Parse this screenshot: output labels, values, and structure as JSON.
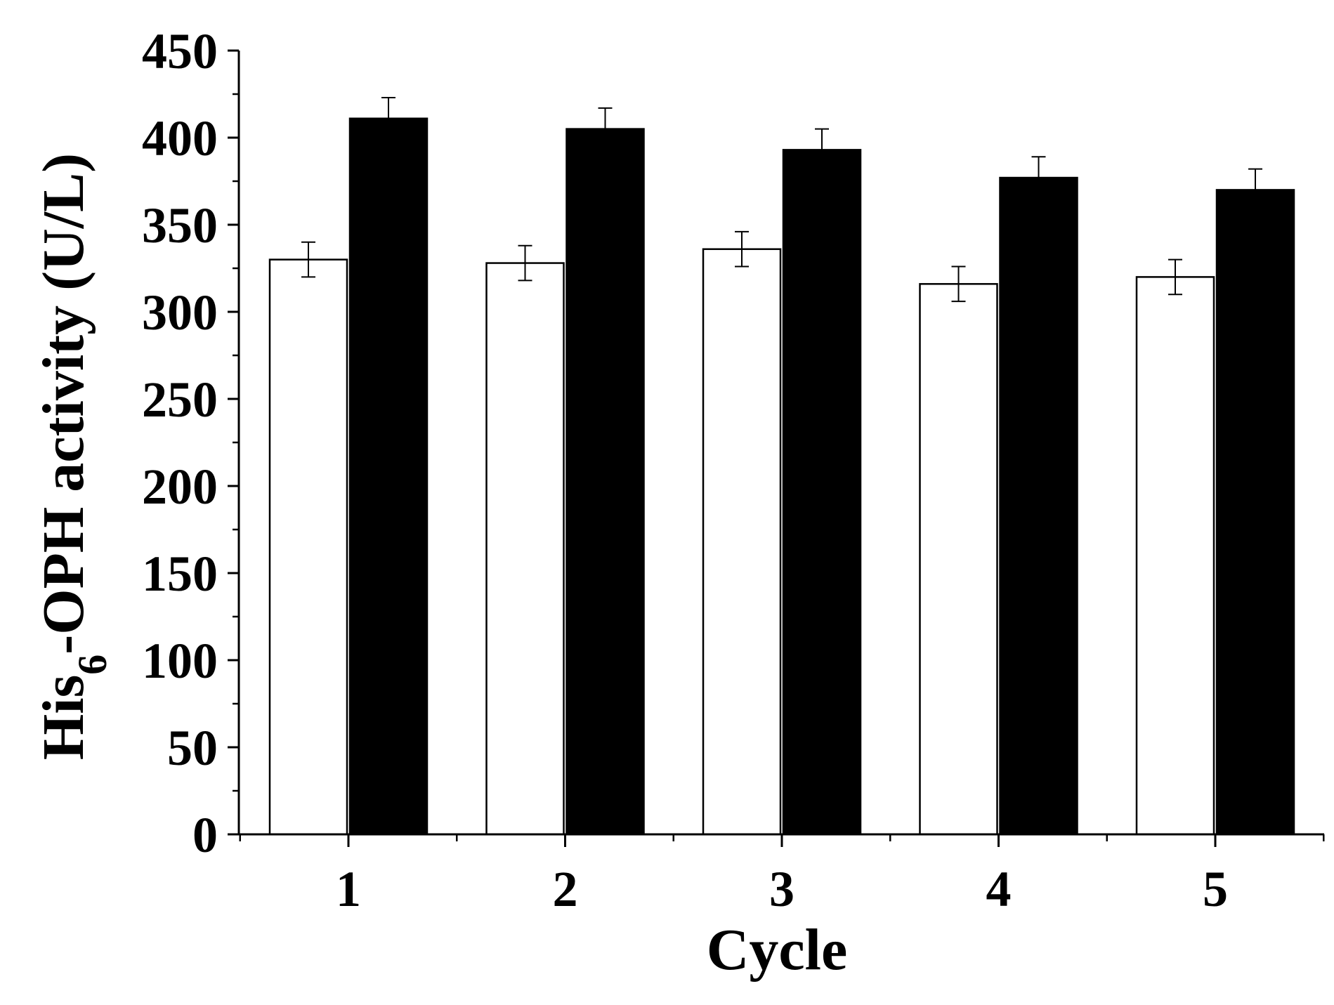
{
  "chart_data": {
    "type": "bar",
    "title": "",
    "xlabel": "Cycle",
    "ylabel": {
      "main": "His",
      "subscript": "6",
      "rest": "-OPH activity (U/L)"
    },
    "categories": [
      "1",
      "2",
      "3",
      "4",
      "5"
    ],
    "series": [
      {
        "fill": "#ffffff",
        "values": [
          330,
          328,
          336,
          316,
          320
        ],
        "errors": [
          10,
          10,
          10,
          10,
          10
        ]
      },
      {
        "fill": "#000000",
        "values": [
          411,
          405,
          393,
          377,
          370
        ],
        "errors": [
          12,
          12,
          12,
          12,
          12
        ]
      }
    ],
    "ylim": [
      0,
      450
    ],
    "yticks": [
      "0",
      "50",
      "100",
      "150",
      "200",
      "250",
      "300",
      "350",
      "400",
      "450"
    ],
    "grid": false,
    "legend": "none"
  },
  "colors": {
    "axis": "#000000",
    "background": "#ffffff"
  }
}
